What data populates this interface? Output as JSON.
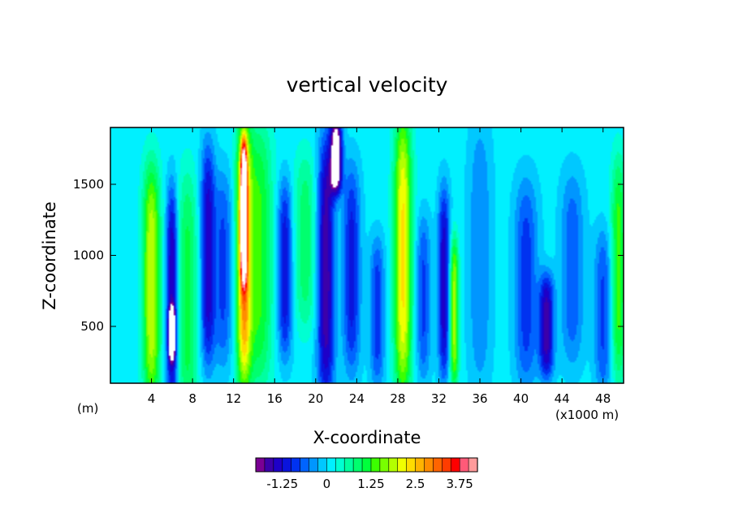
{
  "chart_data": {
    "type": "heatmap",
    "title": "vertical velocity",
    "xlabel": "X-coordinate",
    "ylabel": "Z-coordinate",
    "x_unit_left": "(m)",
    "x_unit_right": "(x1000 m)",
    "xlim": [
      0,
      50
    ],
    "ylim": [
      100,
      1900
    ],
    "x_ticks": [
      4,
      8,
      12,
      16,
      20,
      24,
      28,
      32,
      36,
      40,
      44,
      48
    ],
    "x_tick_labels": [
      "4",
      "8",
      "12",
      "16",
      "20",
      "24",
      "28",
      "32",
      "36",
      "40",
      "44",
      "48"
    ],
    "y_ticks": [
      500,
      1000,
      1500
    ],
    "y_tick_labels": [
      "500",
      "1000",
      "1500"
    ],
    "colorbar": {
      "min": -2.0,
      "max": 4.25,
      "step": 0.25,
      "ticks": [
        -1.25,
        0,
        1.25,
        2.5,
        3.75
      ],
      "tick_labels": [
        "-1.25",
        "0",
        "1.25",
        "2.5",
        "3.75"
      ],
      "colors": [
        "#7a0094",
        "#3c00aa",
        "#1e00c8",
        "#0a14dc",
        "#0032f0",
        "#0064ff",
        "#0096ff",
        "#00c8ff",
        "#00f0ff",
        "#00ffd2",
        "#00ffa0",
        "#00ff6e",
        "#00ff3c",
        "#3cff00",
        "#78ff00",
        "#b4ff00",
        "#f0ff00",
        "#ffdc00",
        "#ffb400",
        "#ff8c00",
        "#ff6400",
        "#ff3c00",
        "#ff0000",
        "#ff5a78",
        "#ff9b9b"
      ]
    },
    "background_value": 0.1,
    "features": [
      {
        "x": 4.0,
        "z": 800,
        "width": 0.6,
        "height": 1600,
        "value": 1.9
      },
      {
        "x": 6.0,
        "z": 700,
        "width": 0.4,
        "height": 1500,
        "value": -1.7
      },
      {
        "x": 6.0,
        "z": 450,
        "width": 0.2,
        "height": 350,
        "value": -2.5
      },
      {
        "x": 7.5,
        "z": 700,
        "width": 0.7,
        "height": 1700,
        "value": 1.0
      },
      {
        "x": 9.5,
        "z": 1000,
        "width": 0.5,
        "height": 1500,
        "value": -1.5
      },
      {
        "x": 11.0,
        "z": 900,
        "width": 0.6,
        "height": 1300,
        "value": -0.9
      },
      {
        "x": 13.0,
        "z": 1000,
        "width": 0.5,
        "height": 1800,
        "value": 2.6
      },
      {
        "x": 13.0,
        "z": 1300,
        "width": 0.2,
        "height": 900,
        "value": 4.6
      },
      {
        "x": 14.5,
        "z": 1000,
        "width": 0.9,
        "height": 1800,
        "value": 1.2
      },
      {
        "x": 17.0,
        "z": 900,
        "width": 0.5,
        "height": 1200,
        "value": -1.3
      },
      {
        "x": 19.0,
        "z": 1100,
        "width": 0.8,
        "height": 1200,
        "value": 0.8
      },
      {
        "x": 21.0,
        "z": 900,
        "width": 0.6,
        "height": 1800,
        "value": -1.8
      },
      {
        "x": 22.0,
        "z": 1700,
        "width": 0.4,
        "height": 500,
        "value": -2.6
      },
      {
        "x": 23.5,
        "z": 900,
        "width": 0.6,
        "height": 1400,
        "value": -1.2
      },
      {
        "x": 26.0,
        "z": 600,
        "width": 0.5,
        "height": 1000,
        "value": -1.0
      },
      {
        "x": 28.5,
        "z": 1000,
        "width": 0.6,
        "height": 1900,
        "value": 2.2
      },
      {
        "x": 30.5,
        "z": 700,
        "width": 0.5,
        "height": 1100,
        "value": -0.9
      },
      {
        "x": 32.5,
        "z": 800,
        "width": 0.4,
        "height": 1300,
        "value": -1.5
      },
      {
        "x": 33.5,
        "z": 600,
        "width": 0.3,
        "height": 1000,
        "value": 1.8
      },
      {
        "x": 36.0,
        "z": 1000,
        "width": 0.8,
        "height": 1800,
        "value": -0.6
      },
      {
        "x": 40.5,
        "z": 800,
        "width": 0.8,
        "height": 1400,
        "value": -1.0
      },
      {
        "x": 42.5,
        "z": 500,
        "width": 0.5,
        "height": 700,
        "value": -1.7
      },
      {
        "x": 45.0,
        "z": 900,
        "width": 0.8,
        "height": 1300,
        "value": -0.8
      },
      {
        "x": 48.0,
        "z": 600,
        "width": 0.6,
        "height": 1100,
        "value": -0.9
      },
      {
        "x": 49.5,
        "z": 900,
        "width": 0.5,
        "height": 1500,
        "value": 1.3
      }
    ]
  }
}
